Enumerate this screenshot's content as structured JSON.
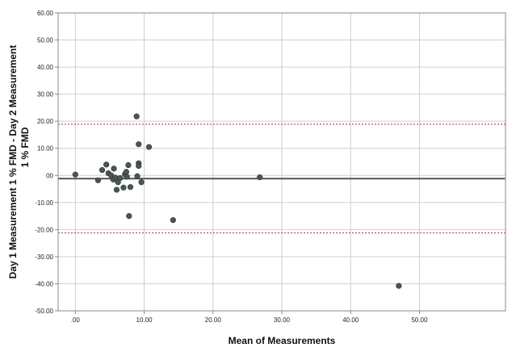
{
  "chart_data": {
    "type": "scatter",
    "title": "",
    "xlabel": "Mean of Measurements",
    "ylabel_line1": "Day 1 Measurement 1 % FMD - Day 2 Measurement",
    "ylabel_line2": "1 % FMD",
    "xlim": [
      -2.5,
      62.5
    ],
    "ylim": [
      -50,
      60
    ],
    "x_ticks": [
      0,
      10,
      20,
      30,
      40,
      50
    ],
    "x_tick_labels": [
      ".00",
      "10.00",
      "20.00",
      "30.00",
      "40.00",
      "50.00"
    ],
    "y_ticks": [
      60,
      50,
      40,
      30,
      20,
      10,
      0,
      -10,
      -20,
      -30,
      -40,
      -50
    ],
    "y_tick_labels": [
      "60.00",
      "50.00",
      "40.00",
      "30.00",
      "20.00",
      "10.00",
      "00",
      "-10.00",
      "-20.00",
      "-30.00",
      "-40.00",
      "-50.00"
    ],
    "grid": true,
    "reference_lines": {
      "mean_difference": -1.2,
      "upper_limit": 18.9,
      "lower_limit": -21.2
    },
    "colors": {
      "points": "#4a5650",
      "mean_line": "#555555",
      "limit_lines": "#b0204a",
      "grid": "#cfcfcf",
      "frame": "#888888"
    },
    "points": [
      {
        "x": 0.0,
        "y": 0.3
      },
      {
        "x": 3.3,
        "y": -1.8
      },
      {
        "x": 3.9,
        "y": 2.0
      },
      {
        "x": 4.5,
        "y": 4.0
      },
      {
        "x": 4.8,
        "y": 0.8
      },
      {
        "x": 5.2,
        "y": 0.0
      },
      {
        "x": 5.5,
        "y": -1.5
      },
      {
        "x": 5.6,
        "y": 2.5
      },
      {
        "x": 5.8,
        "y": -0.8
      },
      {
        "x": 6.0,
        "y": -5.3
      },
      {
        "x": 6.2,
        "y": -2.5
      },
      {
        "x": 6.5,
        "y": -1.0
      },
      {
        "x": 7.0,
        "y": -4.5
      },
      {
        "x": 7.2,
        "y": 0.4
      },
      {
        "x": 7.4,
        "y": 1.3
      },
      {
        "x": 7.5,
        "y": -0.5
      },
      {
        "x": 7.7,
        "y": 3.8
      },
      {
        "x": 7.8,
        "y": -15.0
      },
      {
        "x": 8.0,
        "y": -4.3
      },
      {
        "x": 8.9,
        "y": 21.8
      },
      {
        "x": 9.0,
        "y": -0.3
      },
      {
        "x": 9.2,
        "y": 4.5
      },
      {
        "x": 9.2,
        "y": 3.5
      },
      {
        "x": 9.2,
        "y": 11.5
      },
      {
        "x": 9.6,
        "y": -2.5
      },
      {
        "x": 10.7,
        "y": 10.5
      },
      {
        "x": 14.2,
        "y": -16.5
      },
      {
        "x": 26.8,
        "y": -0.7
      },
      {
        "x": 47.0,
        "y": -40.8
      }
    ]
  }
}
